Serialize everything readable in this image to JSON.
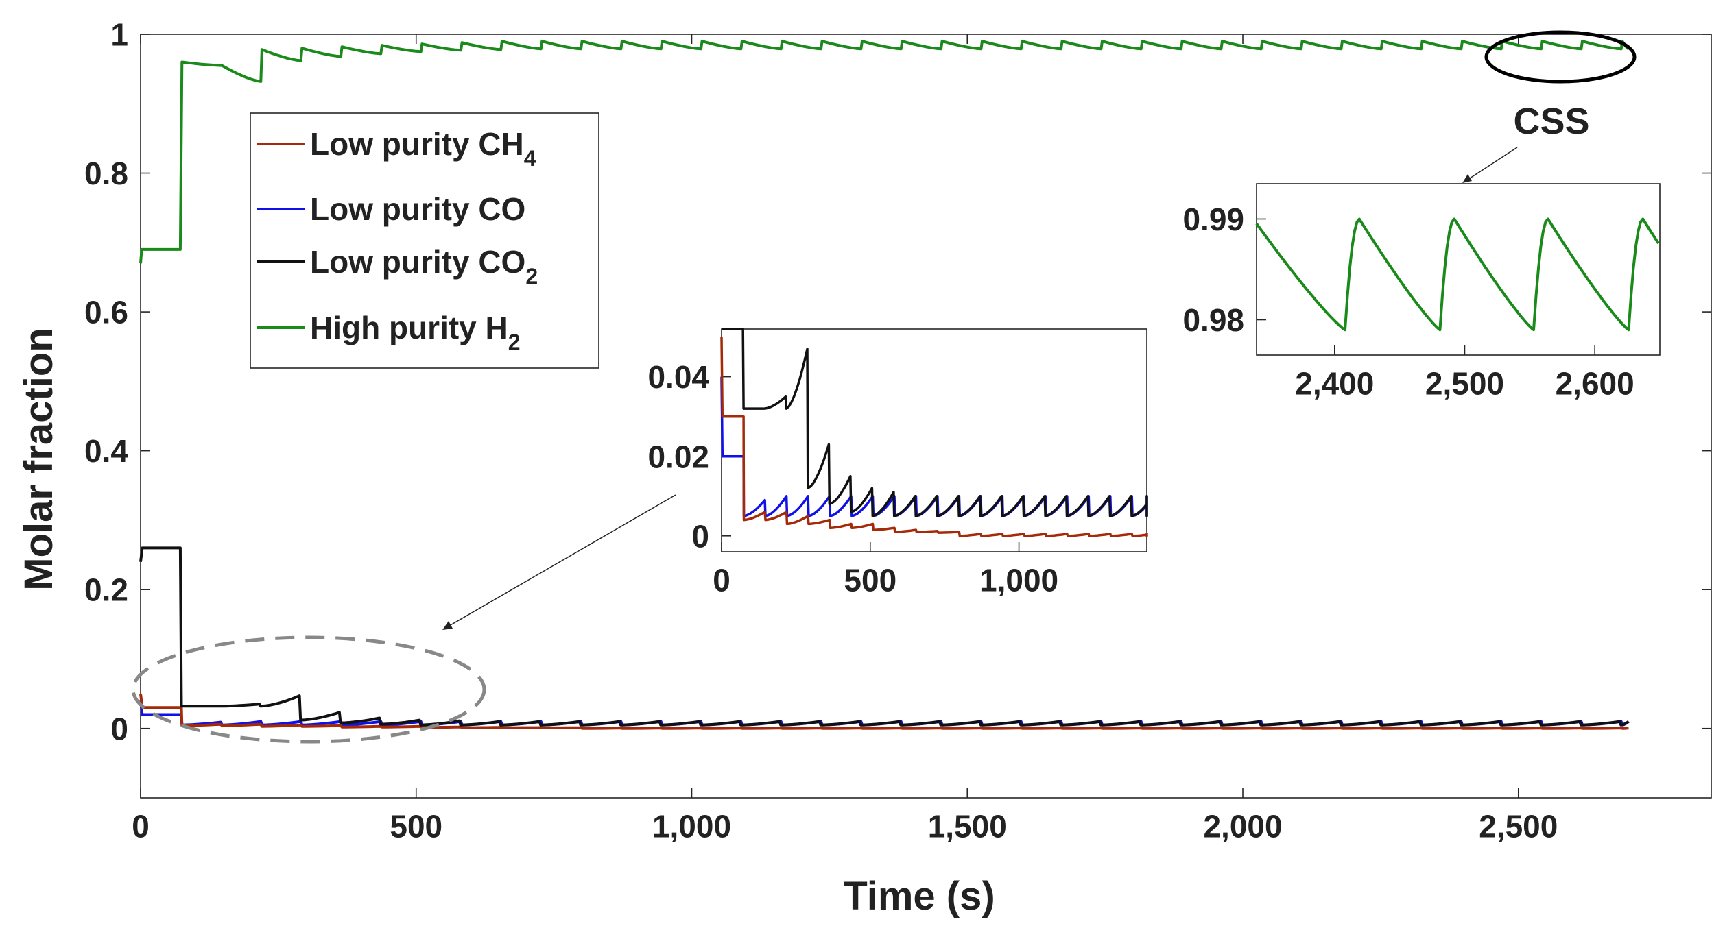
{
  "chart_data": {
    "type": "line",
    "xlabel": "Time (s)",
    "ylabel": "Molar fraction",
    "xlim": [
      0,
      2850
    ],
    "ylim": [
      -0.1,
      1.0
    ],
    "x_ticks": [
      0,
      500,
      1000,
      1500,
      2000,
      2500
    ],
    "x_tick_labels": [
      "0",
      "500",
      "1,000",
      "1,500",
      "2,000",
      "2,500"
    ],
    "y_ticks": [
      0,
      0.2,
      0.4,
      0.6,
      0.8,
      1
    ],
    "y_tick_labels": [
      "0",
      "0.2",
      "0.4",
      "0.6",
      "0.8",
      "1"
    ],
    "grid": false,
    "cycle_period_s": 72.6,
    "t_end_s": 2700,
    "series": [
      {
        "name": "Low purity CH4",
        "legend_main": "Low purity CH",
        "legend_sub": "4",
        "color": "#a52a0a",
        "pattern": "sawtooth",
        "initial": [
          [
            0,
            0.05
          ],
          [
            3,
            0.03
          ],
          [
            74,
            0.03
          ],
          [
            75,
            0.004
          ]
        ],
        "cycle_start_values": [
          0.004,
          0.004,
          0.003,
          0.003,
          0.002,
          0.002,
          0.0015,
          0.001,
          0.001,
          0.0008
        ],
        "cycle_end_values": [
          0.006,
          0.006,
          0.005,
          0.004,
          0.003,
          0.003,
          0.002,
          0.0015,
          0.0012,
          0.001
        ],
        "steady_range": [
          0.0,
          0.0005
        ]
      },
      {
        "name": "Low purity CO",
        "legend_main": "Low purity CO",
        "legend_sub": "",
        "color": "#1010e8",
        "pattern": "sawtooth",
        "initial": [
          [
            0,
            0.04
          ],
          [
            3,
            0.02
          ],
          [
            74,
            0.02
          ],
          [
            75,
            0.005
          ]
        ],
        "cycle_start_values": [
          0.005,
          0.005,
          0.005,
          0.005,
          0.005,
          0.005,
          0.005,
          0.005
        ],
        "cycle_end_values": [
          0.009,
          0.01,
          0.01,
          0.01,
          0.01,
          0.01,
          0.01,
          0.01
        ],
        "steady_range": [
          0.005,
          0.01
        ]
      },
      {
        "name": "Low purity CO2",
        "legend_main": "Low purity CO",
        "legend_sub": "2",
        "color": "#111111",
        "pattern": "sawtooth",
        "initial": [
          [
            0,
            0.24
          ],
          [
            3,
            0.26
          ],
          [
            72,
            0.26
          ],
          [
            74,
            0.032
          ],
          [
            145,
            0.032
          ]
        ],
        "cycle_start_values": [
          0.032,
          0.032,
          0.012,
          0.008,
          0.006,
          0.005,
          0.005,
          0.005
        ],
        "cycle_end_values": [
          0.035,
          0.047,
          0.023,
          0.015,
          0.012,
          0.011,
          0.01,
          0.01
        ],
        "steady_range": [
          0.005,
          0.01
        ]
      },
      {
        "name": "High purity H2",
        "legend_main": "High purity H",
        "legend_sub": "2",
        "color": "#1a8a1a",
        "pattern": "sawtooth",
        "initial": [
          [
            0,
            0.67
          ],
          [
            2,
            0.69
          ],
          [
            72,
            0.69
          ],
          [
            75,
            0.96
          ]
        ],
        "cycle_start_values": [
          0.96,
          0.955,
          0.978,
          0.98,
          0.982,
          0.984,
          0.986,
          0.988,
          0.99
        ],
        "cycle_end_values": [
          0.955,
          0.932,
          0.962,
          0.968,
          0.972,
          0.975,
          0.977,
          0.978,
          0.979
        ],
        "steady_range": [
          0.979,
          0.99
        ]
      }
    ],
    "insets": [
      {
        "name": "early-inset",
        "xlim": [
          0,
          1430
        ],
        "ylim": [
          -0.004,
          0.052
        ],
        "x_ticks": [
          0,
          500,
          1000
        ],
        "x_tick_labels": [
          "0",
          "500",
          "1,000"
        ],
        "y_ticks": [
          0,
          0.02,
          0.04
        ],
        "y_tick_labels": [
          "0",
          "0.02",
          "0.04"
        ],
        "series": [
          "Low purity CH4",
          "Low purity CO",
          "Low purity CO2"
        ]
      },
      {
        "name": "css-inset",
        "xlim": [
          2340,
          2650
        ],
        "ylim": [
          0.9765,
          0.9935
        ],
        "x_ticks": [
          2400,
          2500,
          2600
        ],
        "x_tick_labels": [
          "2,400",
          "2,500",
          "2,600"
        ],
        "y_ticks": [
          0.98,
          0.99
        ],
        "y_tick_labels": [
          "0.98",
          "0.99"
        ],
        "series": [
          "High purity H2"
        ]
      }
    ],
    "annotations": [
      {
        "text": "CSS",
        "target": "css-ellipse"
      }
    ]
  }
}
